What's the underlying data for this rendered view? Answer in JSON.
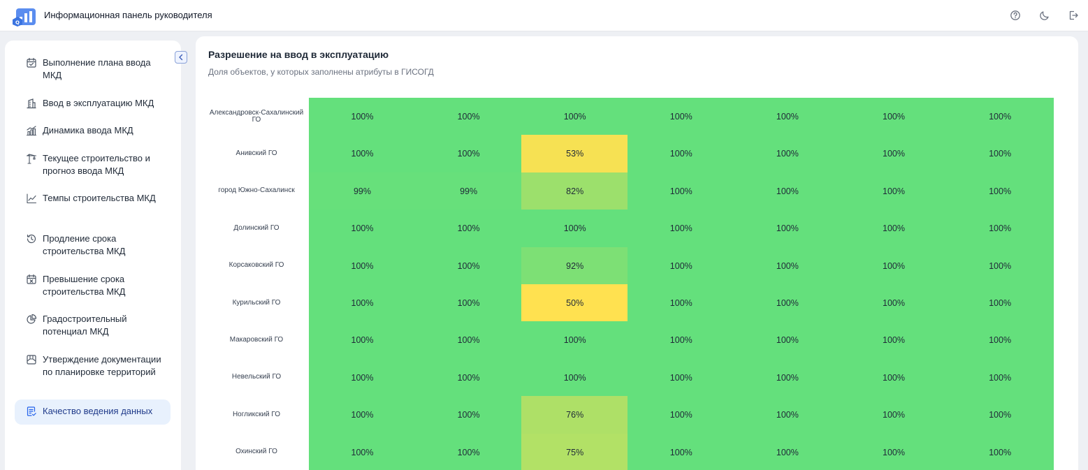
{
  "header": {
    "title": "Информационная панель руководителя",
    "icons": [
      "help-icon",
      "theme-moon-icon",
      "logout-icon"
    ]
  },
  "sidebar": {
    "items": [
      {
        "label": "Выполнение плана ввода МКД",
        "icon": "calendar-check-icon"
      },
      {
        "label": "Ввод в эксплуатацию МКД",
        "icon": "building-icon"
      },
      {
        "label": "Динамика ввода МКД",
        "icon": "chart-buildings-icon"
      },
      {
        "label": "Текущее строительство и прогноз ввода МКД",
        "icon": "crane-icon"
      },
      {
        "label": "Темпы строительства МКД",
        "icon": "line-chart-icon"
      },
      {
        "label": "Продление срока строительства МКД",
        "icon": "history-icon"
      },
      {
        "label": "Превышение срока строительства МКД",
        "icon": "calendar-x-icon"
      },
      {
        "label": "Градостроительный потенциал МКД",
        "icon": "pie-chart-icon"
      },
      {
        "label": "Утверждение документации по планировке территорий",
        "icon": "map-plan-icon"
      },
      {
        "label": "Качество ведения данных",
        "icon": "document-check-icon",
        "active": true
      }
    ]
  },
  "main": {
    "title": "Разрешение на ввод в эксплуатацию",
    "subtitle": "Доля объектов, у которых заполнены атрибуты в ГИСОГД"
  },
  "colors": {
    "green": "#64e07c",
    "yellow": "#ffe150",
    "accent": "#2563eb"
  },
  "chart_data": {
    "type": "heatmap",
    "rows": [
      "Александровск-Сахалинский ГО",
      "Анивский ГО",
      "город Южно-Сахалинск",
      "Долинский ГО",
      "Корсаковский ГО",
      "Курильский ГО",
      "Макаровский ГО",
      "Невельский ГО",
      "Ногликский ГО",
      "Охинский ГО"
    ],
    "values": [
      [
        100,
        100,
        100,
        100,
        100,
        100,
        100
      ],
      [
        100,
        100,
        53,
        100,
        100,
        100,
        100
      ],
      [
        99,
        99,
        82,
        100,
        100,
        100,
        100
      ],
      [
        100,
        100,
        100,
        100,
        100,
        100,
        100
      ],
      [
        100,
        100,
        92,
        100,
        100,
        100,
        100
      ],
      [
        100,
        100,
        50,
        100,
        100,
        100,
        100
      ],
      [
        100,
        100,
        100,
        100,
        100,
        100,
        100
      ],
      [
        100,
        100,
        100,
        100,
        100,
        100,
        100
      ],
      [
        100,
        100,
        76,
        100,
        100,
        100,
        100
      ],
      [
        100,
        100,
        75,
        100,
        100,
        100,
        100
      ]
    ],
    "cell_labels": [
      [
        "100%",
        "100%",
        "100%",
        "100%",
        "100%",
        "100%",
        "100%"
      ],
      [
        "100%",
        "100%",
        "53%",
        "100%",
        "100%",
        "100%",
        "100%"
      ],
      [
        "99%",
        "99%",
        "82%",
        "100%",
        "100%",
        "100%",
        "100%"
      ],
      [
        "100%",
        "100%",
        "100%",
        "100%",
        "100%",
        "100%",
        "100%"
      ],
      [
        "100%",
        "100%",
        "92%",
        "100%",
        "100%",
        "100%",
        "100%"
      ],
      [
        "100%",
        "100%",
        "50%",
        "100%",
        "100%",
        "100%",
        "100%"
      ],
      [
        "100%",
        "100%",
        "100%",
        "100%",
        "100%",
        "100%",
        "100%"
      ],
      [
        "100%",
        "100%",
        "100%",
        "100%",
        "100%",
        "100%",
        "100%"
      ],
      [
        "100%",
        "100%",
        "76%",
        "100%",
        "100%",
        "100%",
        "100%"
      ],
      [
        "100%",
        "100%",
        "75%",
        "100%",
        "100%",
        "100%",
        "100%"
      ]
    ]
  }
}
